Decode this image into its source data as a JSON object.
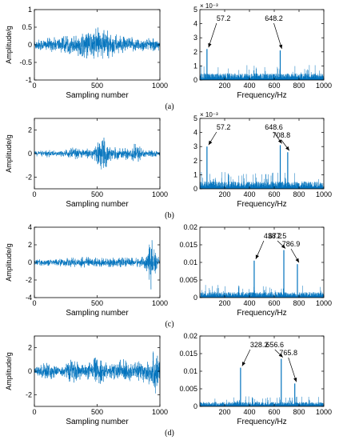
{
  "figure": {
    "captions": [
      "(a)",
      "(b)",
      "(c)",
      "(d)"
    ],
    "series_color": "#0072BD"
  },
  "chart_data": [
    {
      "panel": "a",
      "side": "time",
      "type": "line",
      "xlabel": "Sampling number",
      "ylabel": "Amplitude/g",
      "xlim": [
        0,
        1000
      ],
      "ylim": [
        -1,
        1
      ],
      "xticks": [
        0,
        500,
        1000
      ],
      "yticks": [
        -1,
        -0.5,
        0,
        0.5,
        1
      ],
      "xticklabels": [
        "0",
        "500",
        "1000"
      ],
      "yticklabels": [
        "-1",
        "-0.5",
        "0",
        "0.5",
        "1"
      ],
      "series": [
        {
          "envelope": [
            [
              0,
              0.15
            ],
            [
              100,
              0.18
            ],
            [
              200,
              0.22
            ],
            [
              300,
              0.25
            ],
            [
              400,
              0.35
            ],
            [
              500,
              0.45
            ],
            [
              520,
              0.5
            ],
            [
              600,
              0.35
            ],
            [
              700,
              0.22
            ],
            [
              800,
              0.2
            ],
            [
              900,
              0.18
            ],
            [
              1000,
              0.15
            ]
          ]
        }
      ]
    },
    {
      "panel": "a",
      "side": "freq",
      "type": "spectrum",
      "xlabel": "Frequency/Hz",
      "ylabel": "",
      "xlim": [
        0,
        1000
      ],
      "ylim": [
        0,
        5
      ],
      "xticks": [
        200,
        400,
        600,
        800,
        1000
      ],
      "yticks": [
        0,
        1,
        2,
        3,
        4,
        5
      ],
      "xticklabels": [
        "200",
        "400",
        "600",
        "800",
        "1000"
      ],
      "yticklabels": [
        "0",
        "1",
        "2",
        "3",
        "4",
        "5"
      ],
      "multiplier": "× 10⁻³",
      "noise_floor": 0.45,
      "peaks": [
        {
          "x": 57.2,
          "y": 2.2,
          "label": "57.2"
        },
        {
          "x": 648.2,
          "y": 2.1,
          "label": "648.2"
        }
      ]
    },
    {
      "panel": "b",
      "side": "time",
      "type": "line",
      "xlabel": "Sampling number",
      "ylabel": "Amplitude/g",
      "xlim": [
        0,
        1000
      ],
      "ylim": [
        -3,
        3
      ],
      "xticks": [
        0,
        500,
        1000
      ],
      "yticks": [
        -2,
        0,
        2
      ],
      "xticklabels": [
        "0",
        "500",
        "1000"
      ],
      "yticklabels": [
        "-2",
        "0",
        "2"
      ],
      "series": [
        {
          "envelope": [
            [
              0,
              0.2
            ],
            [
              100,
              0.3
            ],
            [
              200,
              0.2
            ],
            [
              300,
              0.5
            ],
            [
              400,
              0.3
            ],
            [
              500,
              0.8
            ],
            [
              550,
              1.5
            ],
            [
              600,
              0.6
            ],
            [
              700,
              0.4
            ],
            [
              800,
              0.8
            ],
            [
              900,
              0.3
            ],
            [
              1000,
              0.2
            ]
          ]
        }
      ]
    },
    {
      "panel": "b",
      "side": "freq",
      "type": "spectrum",
      "xlabel": "Frequency/Hz",
      "ylabel": "",
      "xlim": [
        0,
        1000
      ],
      "ylim": [
        0,
        5
      ],
      "xticks": [
        200,
        400,
        600,
        800,
        1000
      ],
      "yticks": [
        0,
        1,
        2,
        3,
        4,
        5
      ],
      "xticklabels": [
        "200",
        "400",
        "600",
        "800",
        "1000"
      ],
      "yticklabels": [
        "0",
        "1",
        "2",
        "3",
        "4",
        "5"
      ],
      "multiplier": "× 10⁻³",
      "noise_floor": 0.5,
      "peaks": [
        {
          "x": 57.2,
          "y": 3.0,
          "label": "57.2"
        },
        {
          "x": 648.6,
          "y": 3.1,
          "label": "648.6"
        },
        {
          "x": 708.8,
          "y": 2.6,
          "label": "708.8"
        }
      ]
    },
    {
      "panel": "c",
      "side": "time",
      "type": "line",
      "xlabel": "Sampling number",
      "ylabel": "Amplitude/g",
      "xlim": [
        0,
        1000
      ],
      "ylim": [
        -4,
        4
      ],
      "xticks": [
        0,
        500,
        1000
      ],
      "yticks": [
        -4,
        -2,
        0,
        2,
        4
      ],
      "xticklabels": [
        "0",
        "500",
        "1000"
      ],
      "yticklabels": [
        "-4",
        "-2",
        "0",
        "2",
        "4"
      ],
      "series": [
        {
          "envelope": [
            [
              0,
              0.3
            ],
            [
              200,
              0.4
            ],
            [
              400,
              0.6
            ],
            [
              500,
              0.5
            ],
            [
              700,
              0.5
            ],
            [
              850,
              0.5
            ],
            [
              900,
              1.0
            ],
            [
              930,
              3.0
            ],
            [
              950,
              1.5
            ],
            [
              1000,
              0.3
            ]
          ]
        }
      ]
    },
    {
      "panel": "c",
      "side": "freq",
      "type": "spectrum",
      "xlabel": "Frequency/Hz",
      "ylabel": "",
      "xlim": [
        0,
        1000
      ],
      "ylim": [
        0,
        0.02
      ],
      "xticks": [
        200,
        400,
        600,
        800,
        1000
      ],
      "yticks": [
        0,
        0.005,
        0.01,
        0.015,
        0.02
      ],
      "xticklabels": [
        "200",
        "400",
        "600",
        "800",
        "1000"
      ],
      "yticklabels": [
        "0",
        "0.005",
        "0.01",
        "0.015",
        "0.02"
      ],
      "noise_floor": 0.0015,
      "peaks": [
        {
          "x": 438.2,
          "y": 0.0105,
          "label": "438.2"
        },
        {
          "x": 677.5,
          "y": 0.0135,
          "label": "677.5"
        },
        {
          "x": 786.9,
          "y": 0.0095,
          "label": "786.9"
        }
      ]
    },
    {
      "panel": "d",
      "side": "time",
      "type": "line",
      "xlabel": "Sampling number",
      "ylabel": "Amplitude/g",
      "xlim": [
        0,
        1000
      ],
      "ylim": [
        -3,
        3
      ],
      "xticks": [
        0,
        500,
        1000
      ],
      "yticks": [
        -2,
        0,
        2
      ],
      "xticklabels": [
        "0",
        "500",
        "1000"
      ],
      "yticklabels": [
        "-2",
        "0",
        "2"
      ],
      "series": [
        {
          "envelope": [
            [
              0,
              0.3
            ],
            [
              100,
              0.8
            ],
            [
              200,
              0.3
            ],
            [
              300,
              1.0
            ],
            [
              400,
              0.5
            ],
            [
              500,
              1.2
            ],
            [
              600,
              0.5
            ],
            [
              700,
              1.0
            ],
            [
              800,
              0.7
            ],
            [
              900,
              1.0
            ],
            [
              980,
              2.0
            ],
            [
              1000,
              0.5
            ]
          ]
        }
      ]
    },
    {
      "panel": "d",
      "side": "freq",
      "type": "spectrum",
      "xlabel": "Frequency/Hz",
      "ylabel": "",
      "xlim": [
        0,
        1000
      ],
      "ylim": [
        0,
        0.02
      ],
      "xticks": [
        200,
        400,
        600,
        800,
        1000
      ],
      "yticks": [
        0,
        0.005,
        0.01,
        0.015,
        0.02
      ],
      "xticklabels": [
        "200",
        "400",
        "600",
        "800",
        "1000"
      ],
      "yticklabels": [
        "0",
        "0.005",
        "0.01",
        "0.015",
        "0.02"
      ],
      "noise_floor": 0.0012,
      "peaks": [
        {
          "x": 328.2,
          "y": 0.011,
          "label": "328.2"
        },
        {
          "x": 656.6,
          "y": 0.0135,
          "label": "656.6"
        },
        {
          "x": 765.8,
          "y": 0.0065,
          "label": "765.8"
        }
      ]
    }
  ]
}
